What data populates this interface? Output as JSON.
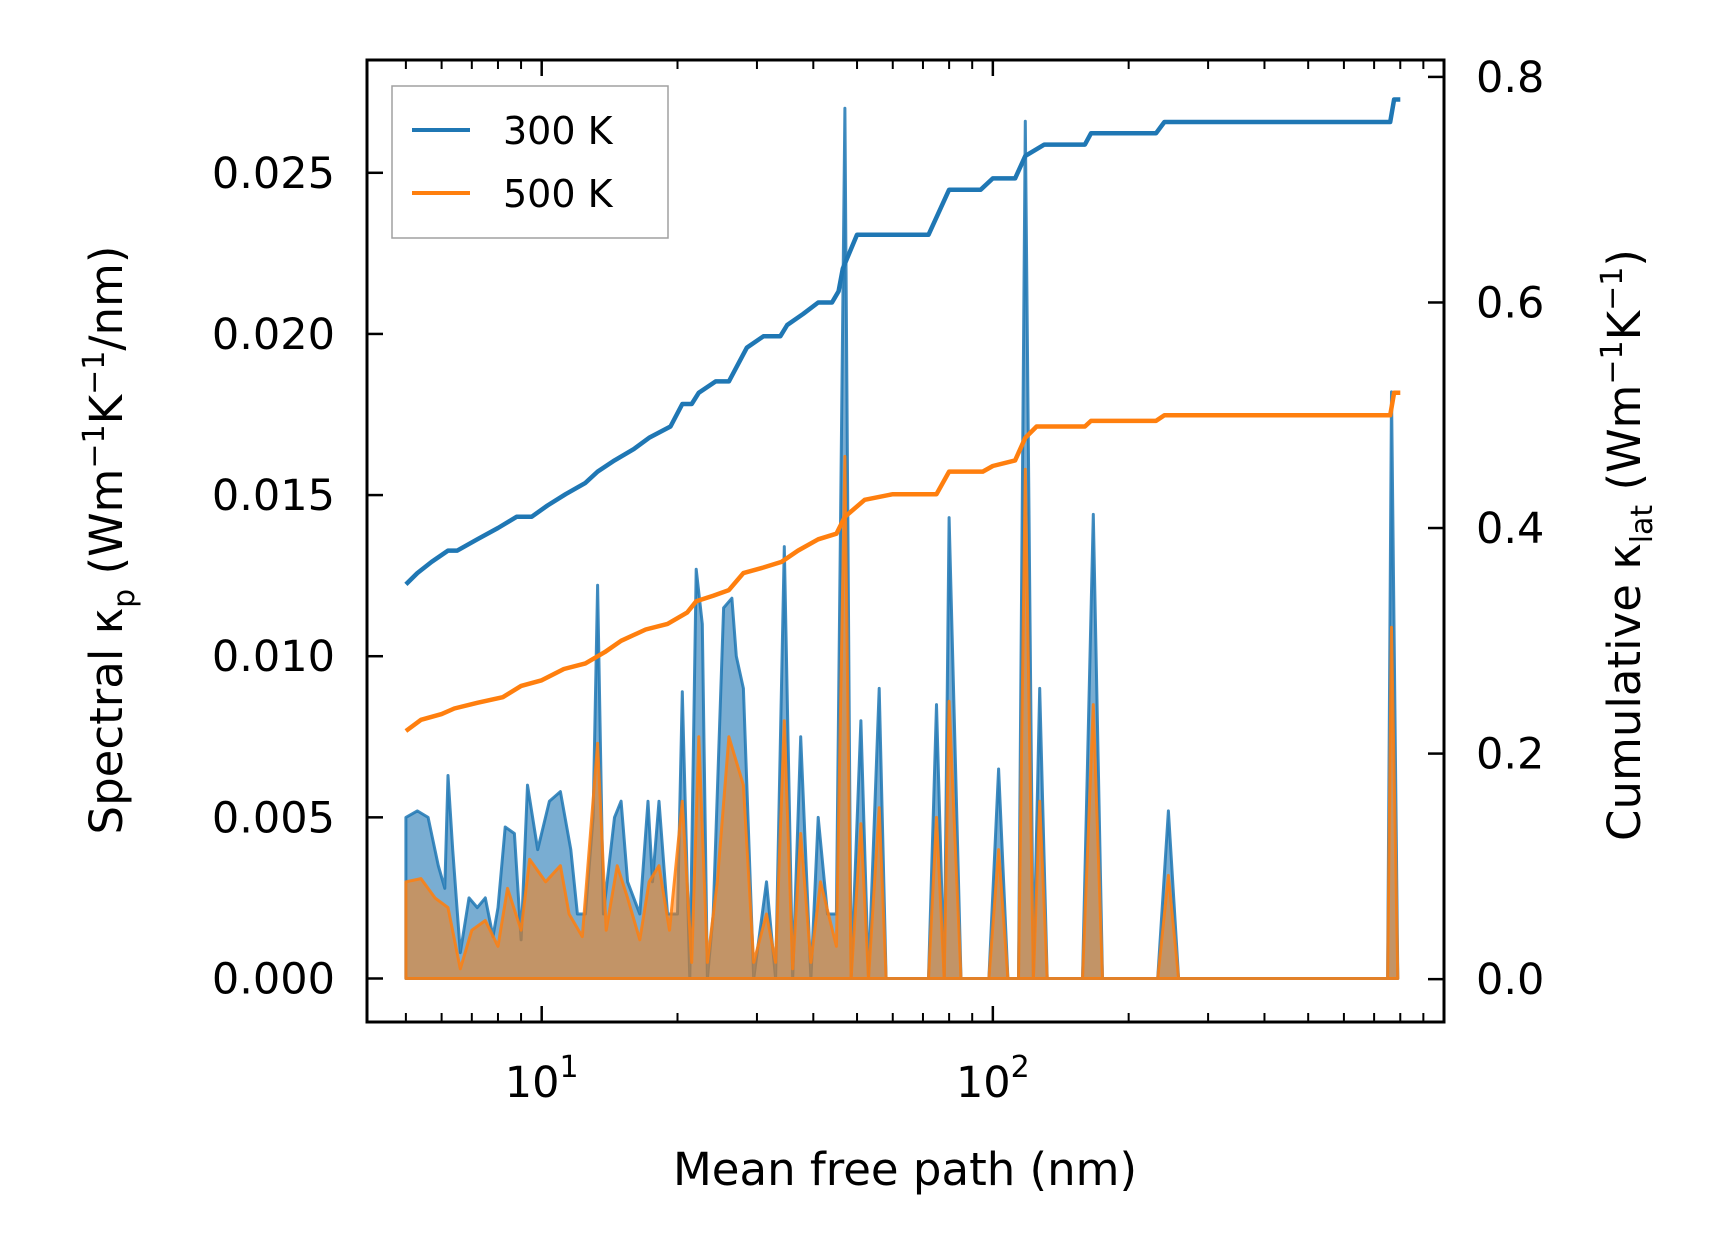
{
  "chart_data": {
    "type": "line",
    "xscale": "log",
    "xlim": [
      4.1,
      1000
    ],
    "xlabel": "Mean free path (nm)",
    "ylabel_left": {
      "prefix": "Spectral κ",
      "sub": "p",
      "units_open": " (Wm",
      "sup1": "−1",
      "mid": "K",
      "sup2": "−1",
      "tail": "/nm)"
    },
    "ylabel_right": {
      "prefix": "Cumulative κ",
      "sub": "lat",
      "units_open": " (Wm",
      "sup1": "−1",
      "mid": "K",
      "sup2": "−1",
      "tail": ")"
    },
    "ylim_left": [
      -0.00135,
      0.0285
    ],
    "ylim_right": [
      -0.038,
      0.815
    ],
    "xticks": [
      {
        "value": 10,
        "base": "10",
        "exp": "1"
      },
      {
        "value": 100,
        "base": "10",
        "exp": "2"
      }
    ],
    "yticks_left": [
      {
        "value": 0.0,
        "label": "0.000"
      },
      {
        "value": 0.005,
        "label": "0.005"
      },
      {
        "value": 0.01,
        "label": "0.010"
      },
      {
        "value": 0.015,
        "label": "0.015"
      },
      {
        "value": 0.02,
        "label": "0.020"
      },
      {
        "value": 0.025,
        "label": "0.025"
      }
    ],
    "yticks_right": [
      {
        "value": 0.0,
        "label": "0.0"
      },
      {
        "value": 0.2,
        "label": "0.2"
      },
      {
        "value": 0.4,
        "label": "0.4"
      },
      {
        "value": 0.6,
        "label": "0.6"
      },
      {
        "value": 0.8,
        "label": "0.8"
      }
    ],
    "legend": {
      "position": "upper-left"
    },
    "series": [
      {
        "name": "300 K",
        "color": "#1f77b4",
        "cumulative": [
          [
            5.0,
            0.35
          ],
          [
            5.3,
            0.36
          ],
          [
            5.7,
            0.37
          ],
          [
            6.2,
            0.38
          ],
          [
            6.5,
            0.38
          ],
          [
            7.2,
            0.39
          ],
          [
            8.0,
            0.4
          ],
          [
            8.8,
            0.41
          ],
          [
            9.5,
            0.41
          ],
          [
            10.3,
            0.42
          ],
          [
            11.3,
            0.43
          ],
          [
            12.5,
            0.44
          ],
          [
            13.3,
            0.45
          ],
          [
            14.5,
            0.46
          ],
          [
            16.0,
            0.47
          ],
          [
            17.3,
            0.48
          ],
          [
            19.3,
            0.49
          ],
          [
            20.5,
            0.51
          ],
          [
            21.5,
            0.51
          ],
          [
            22.3,
            0.52
          ],
          [
            24.3,
            0.53
          ],
          [
            26.0,
            0.53
          ],
          [
            28.5,
            0.56
          ],
          [
            31.0,
            0.57
          ],
          [
            33.8,
            0.57
          ],
          [
            35.0,
            0.58
          ],
          [
            38.0,
            0.59
          ],
          [
            41.0,
            0.6
          ],
          [
            44.0,
            0.6
          ],
          [
            45.5,
            0.61
          ],
          [
            46.5,
            0.63
          ],
          [
            50.0,
            0.66
          ],
          [
            55.0,
            0.66
          ],
          [
            60.0,
            0.66
          ],
          [
            72.0,
            0.66
          ],
          [
            80.0,
            0.7
          ],
          [
            94.0,
            0.7
          ],
          [
            100.0,
            0.71
          ],
          [
            112.0,
            0.71
          ],
          [
            118.0,
            0.73
          ],
          [
            130.0,
            0.74
          ],
          [
            160.0,
            0.74
          ],
          [
            165.0,
            0.75
          ],
          [
            230.0,
            0.75
          ],
          [
            240.0,
            0.76
          ],
          [
            760.0,
            0.76
          ],
          [
            775.0,
            0.78
          ],
          [
            800.0,
            0.78
          ]
        ],
        "spectral": [
          [
            5.0,
            0.005
          ],
          [
            5.3,
            0.0052
          ],
          [
            5.6,
            0.005
          ],
          [
            5.9,
            0.0035
          ],
          [
            6.1,
            0.0028
          ],
          [
            6.2,
            0.0063
          ],
          [
            6.35,
            0.004
          ],
          [
            6.6,
            0.0008
          ],
          [
            6.9,
            0.0025
          ],
          [
            7.2,
            0.0022
          ],
          [
            7.5,
            0.0025
          ],
          [
            7.8,
            0.0013
          ],
          [
            8.0,
            0.0022
          ],
          [
            8.3,
            0.0047
          ],
          [
            8.7,
            0.0045
          ],
          [
            9.0,
            0.0012
          ],
          [
            9.3,
            0.006
          ],
          [
            9.8,
            0.004
          ],
          [
            10.4,
            0.0055
          ],
          [
            11.0,
            0.0058
          ],
          [
            11.6,
            0.004
          ],
          [
            12.0,
            0.002
          ],
          [
            12.5,
            0.002
          ],
          [
            13.0,
            0.005
          ],
          [
            13.3,
            0.0122
          ],
          [
            13.7,
            0.002
          ],
          [
            14.5,
            0.005
          ],
          [
            15.0,
            0.0055
          ],
          [
            15.5,
            0.003
          ],
          [
            16.5,
            0.002
          ],
          [
            17.2,
            0.0055
          ],
          [
            17.6,
            0.003
          ],
          [
            18.2,
            0.0055
          ],
          [
            19.0,
            0.002
          ],
          [
            20.0,
            0.002
          ],
          [
            20.5,
            0.0089
          ],
          [
            21.3,
            0.0
          ],
          [
            22.0,
            0.0127
          ],
          [
            22.7,
            0.011
          ],
          [
            23.3,
            0.0
          ],
          [
            24.0,
            0.002
          ],
          [
            25.3,
            0.0115
          ],
          [
            26.4,
            0.0118
          ],
          [
            27.0,
            0.01
          ],
          [
            28.0,
            0.009
          ],
          [
            29.5,
            0.0
          ],
          [
            31.5,
            0.003
          ],
          [
            33.0,
            0.0
          ],
          [
            34.5,
            0.0134
          ],
          [
            36.0,
            0.0
          ],
          [
            37.5,
            0.0075
          ],
          [
            39.5,
            0.0
          ],
          [
            41.0,
            0.005
          ],
          [
            43.0,
            0.002
          ],
          [
            45.0,
            0.002
          ],
          [
            47.0,
            0.027
          ],
          [
            48.5,
            0.0
          ],
          [
            51.0,
            0.008
          ],
          [
            53.0,
            0.0
          ],
          [
            56.0,
            0.009
          ],
          [
            58.0,
            0.0
          ],
          [
            72.0,
            0.0
          ],
          [
            75.0,
            0.0085
          ],
          [
            78.0,
            0.0
          ],
          [
            80.0,
            0.0143
          ],
          [
            85.0,
            0.0
          ],
          [
            98.0,
            0.0
          ],
          [
            103.0,
            0.0065
          ],
          [
            108.0,
            0.0
          ],
          [
            114.0,
            0.0
          ],
          [
            118.0,
            0.0266
          ],
          [
            123.0,
            0.0
          ],
          [
            127.0,
            0.009
          ],
          [
            132.0,
            0.0
          ],
          [
            158.0,
            0.0
          ],
          [
            167.0,
            0.0144
          ],
          [
            175.0,
            0.0
          ],
          [
            232.0,
            0.0
          ],
          [
            245.0,
            0.0052
          ],
          [
            258.0,
            0.0
          ],
          [
            750.0,
            0.0
          ],
          [
            765.0,
            0.0182
          ],
          [
            790.0,
            0.0
          ]
        ]
      },
      {
        "name": "500 K",
        "color": "#ff7f0e",
        "cumulative": [
          [
            5.0,
            0.22
          ],
          [
            5.4,
            0.23
          ],
          [
            6.0,
            0.235
          ],
          [
            6.4,
            0.24
          ],
          [
            7.2,
            0.245
          ],
          [
            8.2,
            0.25
          ],
          [
            9.0,
            0.26
          ],
          [
            10.0,
            0.265
          ],
          [
            11.2,
            0.275
          ],
          [
            12.5,
            0.28
          ],
          [
            13.8,
            0.29
          ],
          [
            15.0,
            0.3
          ],
          [
            17.0,
            0.31
          ],
          [
            19.0,
            0.315
          ],
          [
            21.0,
            0.325
          ],
          [
            22.0,
            0.335
          ],
          [
            24.0,
            0.34
          ],
          [
            26.0,
            0.345
          ],
          [
            28.0,
            0.36
          ],
          [
            31.0,
            0.365
          ],
          [
            34.0,
            0.37
          ],
          [
            37.0,
            0.38
          ],
          [
            41.0,
            0.39
          ],
          [
            45.0,
            0.395
          ],
          [
            47.0,
            0.41
          ],
          [
            52.0,
            0.425
          ],
          [
            60.0,
            0.43
          ],
          [
            75.0,
            0.43
          ],
          [
            80.0,
            0.45
          ],
          [
            95.0,
            0.45
          ],
          [
            100.0,
            0.455
          ],
          [
            112.0,
            0.46
          ],
          [
            118.0,
            0.48
          ],
          [
            125.0,
            0.49
          ],
          [
            160.0,
            0.49
          ],
          [
            165.0,
            0.495
          ],
          [
            230.0,
            0.495
          ],
          [
            240.0,
            0.5
          ],
          [
            760.0,
            0.5
          ],
          [
            775.0,
            0.52
          ],
          [
            800.0,
            0.52
          ]
        ],
        "spectral": [
          [
            5.0,
            0.003
          ],
          [
            5.4,
            0.0031
          ],
          [
            5.8,
            0.0025
          ],
          [
            6.2,
            0.0022
          ],
          [
            6.6,
            0.0003
          ],
          [
            7.0,
            0.0015
          ],
          [
            7.5,
            0.0018
          ],
          [
            8.0,
            0.001
          ],
          [
            8.4,
            0.0028
          ],
          [
            9.0,
            0.0015
          ],
          [
            9.4,
            0.0037
          ],
          [
            10.2,
            0.003
          ],
          [
            11.0,
            0.0035
          ],
          [
            11.5,
            0.002
          ],
          [
            12.3,
            0.0013
          ],
          [
            13.3,
            0.0073
          ],
          [
            13.9,
            0.0015
          ],
          [
            14.7,
            0.0035
          ],
          [
            15.5,
            0.0025
          ],
          [
            16.5,
            0.0012
          ],
          [
            17.3,
            0.003
          ],
          [
            18.2,
            0.0035
          ],
          [
            19.2,
            0.0015
          ],
          [
            20.5,
            0.0055
          ],
          [
            21.5,
            0.0005
          ],
          [
            22.3,
            0.0075
          ],
          [
            23.3,
            0.0005
          ],
          [
            24.5,
            0.003
          ],
          [
            26.0,
            0.0075
          ],
          [
            28.0,
            0.006
          ],
          [
            29.5,
            0.0005
          ],
          [
            31.5,
            0.002
          ],
          [
            33.0,
            0.0005
          ],
          [
            34.5,
            0.008
          ],
          [
            36.0,
            0.0003
          ],
          [
            37.5,
            0.0045
          ],
          [
            39.5,
            0.0005
          ],
          [
            41.5,
            0.003
          ],
          [
            45.0,
            0.001
          ],
          [
            47.0,
            0.0162
          ],
          [
            48.5,
            0.0
          ],
          [
            51.0,
            0.0048
          ],
          [
            53.0,
            0.0
          ],
          [
            56.0,
            0.0053
          ],
          [
            58.0,
            0.0
          ],
          [
            72.0,
            0.0
          ],
          [
            75.0,
            0.005
          ],
          [
            78.0,
            0.0
          ],
          [
            80.0,
            0.0086
          ],
          [
            85.0,
            0.0
          ],
          [
            98.0,
            0.0
          ],
          [
            103.0,
            0.004
          ],
          [
            108.0,
            0.0
          ],
          [
            114.0,
            0.0
          ],
          [
            118.0,
            0.0158
          ],
          [
            123.0,
            0.0
          ],
          [
            127.0,
            0.0055
          ],
          [
            132.0,
            0.0
          ],
          [
            158.0,
            0.0
          ],
          [
            167.0,
            0.0085
          ],
          [
            175.0,
            0.0
          ],
          [
            232.0,
            0.0
          ],
          [
            245.0,
            0.0032
          ],
          [
            258.0,
            0.0
          ],
          [
            750.0,
            0.0
          ],
          [
            765.0,
            0.0109
          ],
          [
            790.0,
            0.0
          ]
        ]
      }
    ]
  }
}
